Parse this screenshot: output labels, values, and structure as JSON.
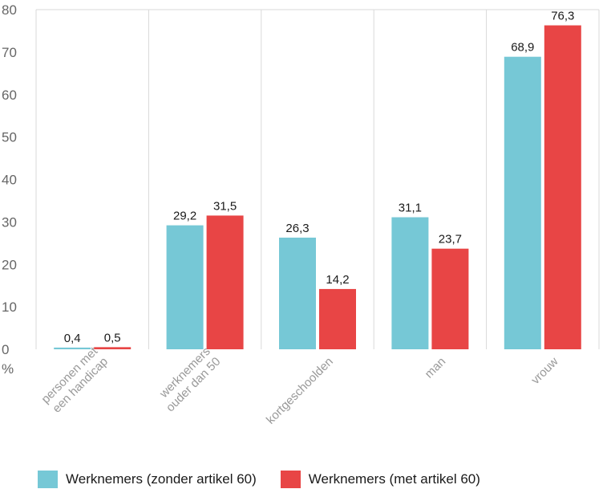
{
  "chart_data": {
    "type": "bar",
    "categories": [
      [
        "personen met",
        "een handicap"
      ],
      [
        "werknemers",
        "ouder dan 50"
      ],
      [
        "kortgeschoolden"
      ],
      [
        "man"
      ],
      [
        "vrouw"
      ]
    ],
    "series": [
      {
        "name": "Werknemers (zonder artikel 60)",
        "color": "#76c8d6",
        "values": [
          0.4,
          29.2,
          26.3,
          31.1,
          68.9
        ],
        "labels": [
          "0,4",
          "29,2",
          "26,3",
          "31,1",
          "68,9"
        ]
      },
      {
        "name": "Werknemers (met artikel 60)",
        "color": "#e84545",
        "values": [
          0.5,
          31.5,
          14.2,
          23.7,
          76.3
        ],
        "labels": [
          "0,5",
          "31,5",
          "14,2",
          "23,7",
          "76,3"
        ]
      }
    ],
    "ylim": [
      0,
      80
    ],
    "yticks": [
      0,
      10,
      20,
      30,
      40,
      50,
      60,
      70,
      80
    ],
    "ylabel": "%",
    "grid": "vertical",
    "legend": "bottom-left"
  }
}
